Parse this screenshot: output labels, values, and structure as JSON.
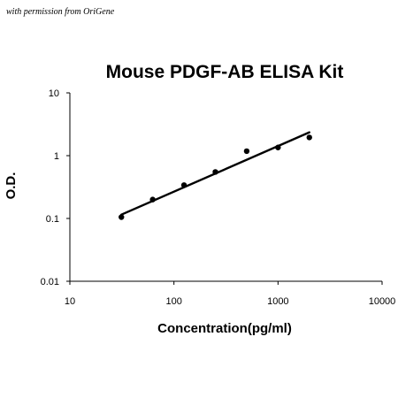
{
  "watermark": "with permission from OriGene",
  "chart_data": {
    "type": "scatter",
    "title": "Mouse PDGF-AB ELISA Kit",
    "xlabel": "Concentration(pg/ml)",
    "ylabel": "O.D.",
    "xscale": "log",
    "yscale": "log",
    "xlim": [
      10,
      10000
    ],
    "ylim": [
      0.01,
      10
    ],
    "xticks": [
      10,
      100,
      1000,
      10000
    ],
    "xtick_labels": [
      "10",
      "100",
      "1000",
      "10000"
    ],
    "yticks": [
      0.01,
      0.1,
      1,
      10
    ],
    "ytick_labels": [
      "0.01",
      "0.1",
      "1",
      "10"
    ],
    "grid": false,
    "legend": "none",
    "series": [
      {
        "x": [
          31.25,
          62.5,
          125,
          250,
          500,
          1000,
          2000
        ],
        "y": [
          0.105,
          0.2,
          0.34,
          0.55,
          1.18,
          1.35,
          1.95
        ],
        "marker": "circle",
        "color": "#000000"
      }
    ],
    "fit_line": {
      "type": "power",
      "x": [
        31.25,
        2000
      ],
      "y": [
        0.115,
        2.35
      ],
      "color": "#000000"
    }
  }
}
